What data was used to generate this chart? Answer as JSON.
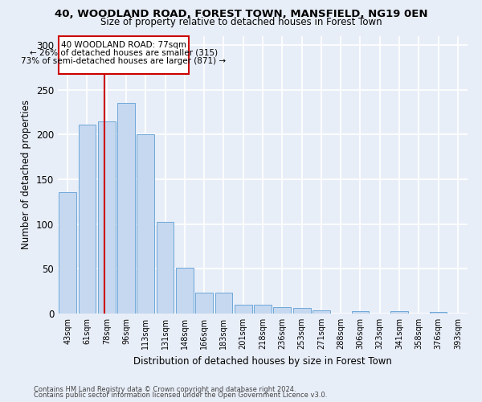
{
  "title_line1": "40, WOODLAND ROAD, FOREST TOWN, MANSFIELD, NG19 0EN",
  "title_line2": "Size of property relative to detached houses in Forest Town",
  "xlabel": "Distribution of detached houses by size in Forest Town",
  "ylabel": "Number of detached properties",
  "footnote1": "Contains HM Land Registry data © Crown copyright and database right 2024.",
  "footnote2": "Contains public sector information licensed under the Open Government Licence v3.0.",
  "bar_labels": [
    "43sqm",
    "61sqm",
    "78sqm",
    "96sqm",
    "113sqm",
    "131sqm",
    "148sqm",
    "166sqm",
    "183sqm",
    "201sqm",
    "218sqm",
    "236sqm",
    "253sqm",
    "271sqm",
    "288sqm",
    "306sqm",
    "323sqm",
    "341sqm",
    "358sqm",
    "376sqm",
    "393sqm"
  ],
  "bar_values": [
    136,
    211,
    215,
    235,
    200,
    102,
    51,
    23,
    23,
    10,
    10,
    7,
    6,
    4,
    0,
    3,
    0,
    3,
    0,
    2,
    0
  ],
  "bar_color": "#c5d8f0",
  "bar_edge_color": "#6ea8d8",
  "background_color": "#e8eef8",
  "grid_color": "#ffffff",
  "annotation_line1": "40 WOODLAND ROAD: 77sqm",
  "annotation_line2": "← 26% of detached houses are smaller (315)",
  "annotation_line3": "73% of semi-detached houses are larger (871) →",
  "annotation_box_color": "#ffffff",
  "annotation_box_edge": "#cc0000",
  "vline_color": "#cc0000",
  "ylim": [
    0,
    310
  ],
  "yticks": [
    0,
    50,
    100,
    150,
    200,
    250,
    300
  ]
}
